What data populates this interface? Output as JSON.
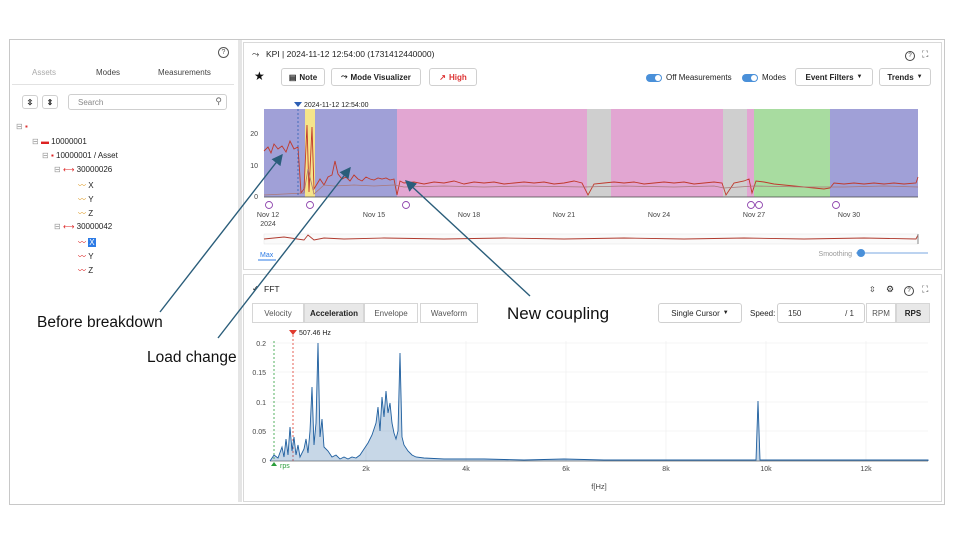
{
  "left": {
    "tabs": [
      "Assets",
      "Modes",
      "Measurements"
    ],
    "search_placeholder": "Search",
    "tree": {
      "root": "10000001",
      "asset": "10000001 / Asset",
      "s1": "30000026",
      "s1_axes": [
        "X",
        "Y",
        "Z"
      ],
      "s2": "30000042",
      "s2_axes": [
        "X",
        "Y",
        "Z"
      ]
    }
  },
  "kpi": {
    "title": "KPI | 2024-11-12 12:54:00 (1731412440000)",
    "note_label": "Note",
    "mode_visualizer_label": "Mode Visualizer",
    "high_label": "High",
    "off_measurements_label": "Off Measurements",
    "modes_label": "Modes",
    "event_filters_label": "Event Filters",
    "trends_label": "Trends",
    "cursor_label": "2024-11-12 12:54:00",
    "y_ticks": [
      "20",
      "10",
      "0"
    ],
    "x_ticks": [
      "Nov 12",
      "Nov 15",
      "Nov 18",
      "Nov 21",
      "Nov 24",
      "Nov 27",
      "Nov 30"
    ],
    "x_year": "2024",
    "max_label": "Max",
    "smoothing_label": "Smoothing",
    "mode_colors": {
      "blue": "#8f8fd0",
      "yellow": "#f5e48a",
      "pink": "#e2a6d2",
      "gray": "#cfcfcf",
      "green": "#a8dca0"
    }
  },
  "fft": {
    "title": "FFT",
    "tabs": [
      "Velocity",
      "Acceleration",
      "Envelope",
      "Waveform"
    ],
    "active_tab": "Acceleration",
    "cursor_select": "Single Cursor",
    "speed_label": "Speed:",
    "speed_value": "150",
    "speed_ratio": "/ 1",
    "rpm_label": "RPM",
    "rps_label": "RPS",
    "marker_label": "507.46 Hz",
    "rps_marker": "rps",
    "y_ticks": [
      "0.2",
      "0.15",
      "0.1",
      "0.05",
      "0"
    ],
    "x_ticks": [
      "2k",
      "4k",
      "6k",
      "8k",
      "10k",
      "12k"
    ],
    "x_label": "f[Hz]"
  },
  "annotations": {
    "before": "Before breakdown",
    "load": "Load change",
    "coupling": "New coupling"
  }
}
